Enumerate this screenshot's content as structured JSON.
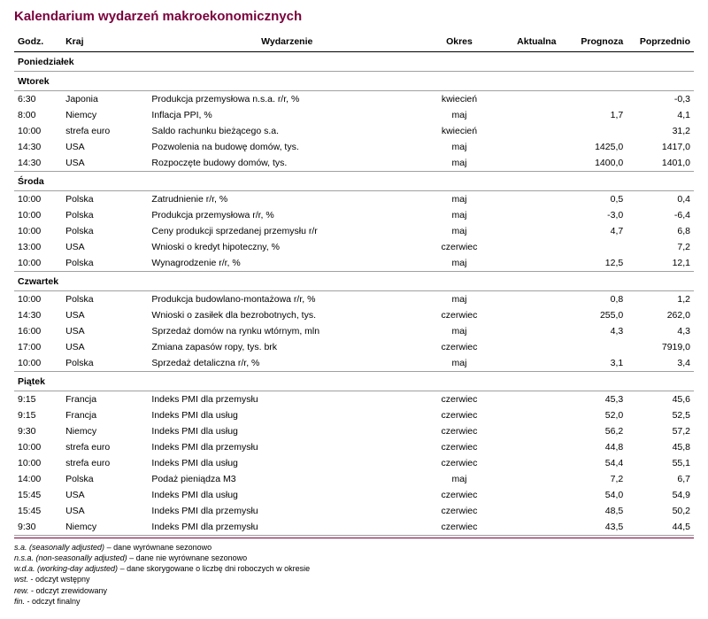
{
  "title": "Kalendarium wydarzeń makroekonomicznych",
  "colors": {
    "brand": "#7a003c",
    "rule": "#a0a0a0",
    "text": "#000000",
    "bg": "#ffffff"
  },
  "columns": {
    "godz": "Godz.",
    "kraj": "Kraj",
    "wydarzenie": "Wydarzenie",
    "okres": "Okres",
    "aktualna": "Aktualna",
    "prognoza": "Prognoza",
    "poprzednio": "Poprzednio"
  },
  "groups": [
    {
      "day": "Poniedziałek",
      "rows": []
    },
    {
      "day": "Wtorek",
      "rows": [
        {
          "godz": "6:30",
          "kraj": "Japonia",
          "wyd": "Produkcja przemysłowa n.s.a. r/r, %",
          "okres": "kwiecień",
          "akt": "",
          "prog": "",
          "pop": "-0,3"
        },
        {
          "godz": "8:00",
          "kraj": "Niemcy",
          "wyd": "Inflacja PPI, %",
          "okres": "maj",
          "akt": "",
          "prog": "1,7",
          "pop": "4,1"
        },
        {
          "godz": "10:00",
          "kraj": "strefa euro",
          "wyd": "Saldo rachunku bieżącego s.a.",
          "okres": "kwiecień",
          "akt": "",
          "prog": "",
          "pop": "31,2"
        },
        {
          "godz": "14:30",
          "kraj": "USA",
          "wyd": "Pozwolenia na budowę domów, tys.",
          "okres": "maj",
          "akt": "",
          "prog": "1425,0",
          "pop": "1417,0"
        },
        {
          "godz": "14:30",
          "kraj": "USA",
          "wyd": "Rozpoczęte budowy domów, tys.",
          "okres": "maj",
          "akt": "",
          "prog": "1400,0",
          "pop": "1401,0"
        }
      ]
    },
    {
      "day": "Środa",
      "rows": [
        {
          "godz": "10:00",
          "kraj": "Polska",
          "wyd": "Zatrudnienie r/r, %",
          "okres": "maj",
          "akt": "",
          "prog": "0,5",
          "pop": "0,4"
        },
        {
          "godz": "10:00",
          "kraj": "Polska",
          "wyd": "Produkcja przemysłowa r/r, %",
          "okres": "maj",
          "akt": "",
          "prog": "-3,0",
          "pop": "-6,4"
        },
        {
          "godz": "10:00",
          "kraj": "Polska",
          "wyd": "Ceny produkcji sprzedanej przemysłu r/r",
          "okres": "maj",
          "akt": "",
          "prog": "4,7",
          "pop": "6,8"
        },
        {
          "godz": "13:00",
          "kraj": "USA",
          "wyd": "Wnioski o kredyt hipoteczny, %",
          "okres": "czerwiec",
          "akt": "",
          "prog": "",
          "pop": "7,2"
        },
        {
          "godz": "10:00",
          "kraj": "Polska",
          "wyd": "Wynagrodzenie r/r, %",
          "okres": "maj",
          "akt": "",
          "prog": "12,5",
          "pop": "12,1"
        }
      ]
    },
    {
      "day": "Czwartek",
      "rows": [
        {
          "godz": "10:00",
          "kraj": "Polska",
          "wyd": "Produkcja budowlano-montażowa r/r, %",
          "okres": "maj",
          "akt": "",
          "prog": "0,8",
          "pop": "1,2"
        },
        {
          "godz": "14:30",
          "kraj": "USA",
          "wyd": "Wnioski o zasiłek dla bezrobotnych, tys.",
          "okres": "czerwiec",
          "akt": "",
          "prog": "255,0",
          "pop": "262,0"
        },
        {
          "godz": "16:00",
          "kraj": "USA",
          "wyd": "Sprzedaż domów na rynku wtórnym, mln",
          "okres": "maj",
          "akt": "",
          "prog": "4,3",
          "pop": "4,3"
        },
        {
          "godz": "17:00",
          "kraj": "USA",
          "wyd": "Zmiana zapasów ropy, tys. brk",
          "okres": "czerwiec",
          "akt": "",
          "prog": "",
          "pop": "7919,0"
        },
        {
          "godz": "10:00",
          "kraj": "Polska",
          "wyd": "Sprzedaż detaliczna r/r, %",
          "okres": "maj",
          "akt": "",
          "prog": "3,1",
          "pop": "3,4"
        }
      ]
    },
    {
      "day": "Piątek",
      "rows": [
        {
          "godz": "9:15",
          "kraj": "Francja",
          "wyd": "Indeks PMI dla przemysłu",
          "okres": "czerwiec",
          "akt": "",
          "prog": "45,3",
          "pop": "45,6"
        },
        {
          "godz": "9:15",
          "kraj": "Francja",
          "wyd": "Indeks PMI dla usług",
          "okres": "czerwiec",
          "akt": "",
          "prog": "52,0",
          "pop": "52,5"
        },
        {
          "godz": "9:30",
          "kraj": "Niemcy",
          "wyd": "Indeks PMI dla usług",
          "okres": "czerwiec",
          "akt": "",
          "prog": "56,2",
          "pop": "57,2"
        },
        {
          "godz": "10:00",
          "kraj": "strefa euro",
          "wyd": "Indeks PMI dla przemysłu",
          "okres": "czerwiec",
          "akt": "",
          "prog": "44,8",
          "pop": "45,8"
        },
        {
          "godz": "10:00",
          "kraj": "strefa euro",
          "wyd": "Indeks PMI dla usług",
          "okres": "czerwiec",
          "akt": "",
          "prog": "54,4",
          "pop": "55,1"
        },
        {
          "godz": "14:00",
          "kraj": "Polska",
          "wyd": "Podaż pieniądza M3",
          "okres": "maj",
          "akt": "",
          "prog": "7,2",
          "pop": "6,7"
        },
        {
          "godz": "15:45",
          "kraj": "USA",
          "wyd": "Indeks PMI dla usług",
          "okres": "czerwiec",
          "akt": "",
          "prog": "54,0",
          "pop": "54,9"
        },
        {
          "godz": "15:45",
          "kraj": "USA",
          "wyd": "Indeks PMI dla przemysłu",
          "okres": "czerwiec",
          "akt": "",
          "prog": "48,5",
          "pop": "50,2"
        },
        {
          "godz": "9:30",
          "kraj": "Niemcy",
          "wyd": "Indeks PMI dla przemysłu",
          "okres": "czerwiec",
          "akt": "",
          "prog": "43,5",
          "pop": "44,5"
        }
      ]
    }
  ],
  "footnotes": [
    {
      "abbr": "s.a. (seasonally adjusted)",
      "text": " – dane wyrównane sezonowo"
    },
    {
      "abbr": "n.s.a. (non-seasonally adjusted)",
      "text": " – dane nie wyrównane sezonowo"
    },
    {
      "abbr": "w.d.a. (working-day adjusted)",
      "text": " – dane skorygowane o liczbę dni roboczych w okresie"
    },
    {
      "abbr": "wst.",
      "text": " - odczyt wstępny"
    },
    {
      "abbr": "rew.",
      "text": " - odczyt zrewidowany"
    },
    {
      "abbr": "fin.",
      "text": " - odczyt finalny"
    }
  ]
}
